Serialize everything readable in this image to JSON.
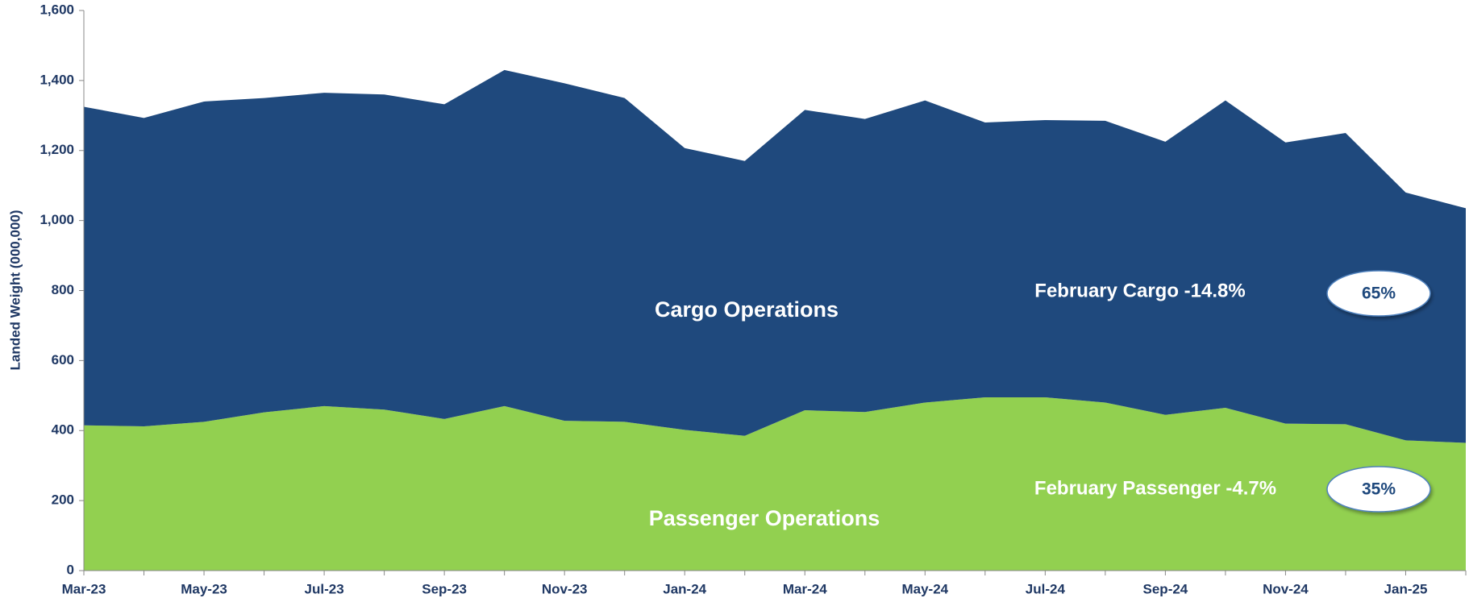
{
  "chart_data": {
    "type": "stacked_area",
    "y_label": "Landed Weight (000,000)",
    "categories": [
      "Mar-23",
      null,
      "May-23",
      null,
      "Jul-23",
      null,
      "Sep-23",
      null,
      "Nov-23",
      null,
      "Jan-24",
      null,
      "Mar-24",
      null,
      "May-24",
      null,
      "Jul-24",
      null,
      "Sep-24",
      null,
      "Nov-24",
      null,
      "Jan-25",
      null
    ],
    "series": [
      {
        "name": "Passenger Operations",
        "color": "#92d050",
        "values": [
          415,
          412,
          425,
          452,
          470,
          460,
          433,
          470,
          428,
          425,
          402,
          385,
          458,
          453,
          480,
          495,
          495,
          480,
          445,
          465,
          420,
          418,
          372,
          365
        ]
      },
      {
        "name": "Cargo Operations",
        "color": "#1f497d",
        "values": [
          910,
          881,
          915,
          898,
          895,
          900,
          899,
          960,
          964,
          925,
          805,
          785,
          858,
          837,
          863,
          785,
          792,
          805,
          780,
          878,
          803,
          832,
          708,
          670
        ]
      }
    ],
    "ylim": [
      0,
      1600
    ],
    "yticks": [
      0,
      200,
      400,
      600,
      800,
      {
        "value": 1000,
        "label": "1,000"
      },
      {
        "value": 1200,
        "label": "1,200"
      },
      {
        "value": 1400,
        "label": "1,400"
      },
      {
        "value": 1600,
        "label": "1,600"
      }
    ],
    "annotations": [
      {
        "text": "February Cargo -14.8%",
        "share": "65%"
      },
      {
        "text": "February Passenger -4.7%",
        "share": "35%"
      }
    ]
  }
}
